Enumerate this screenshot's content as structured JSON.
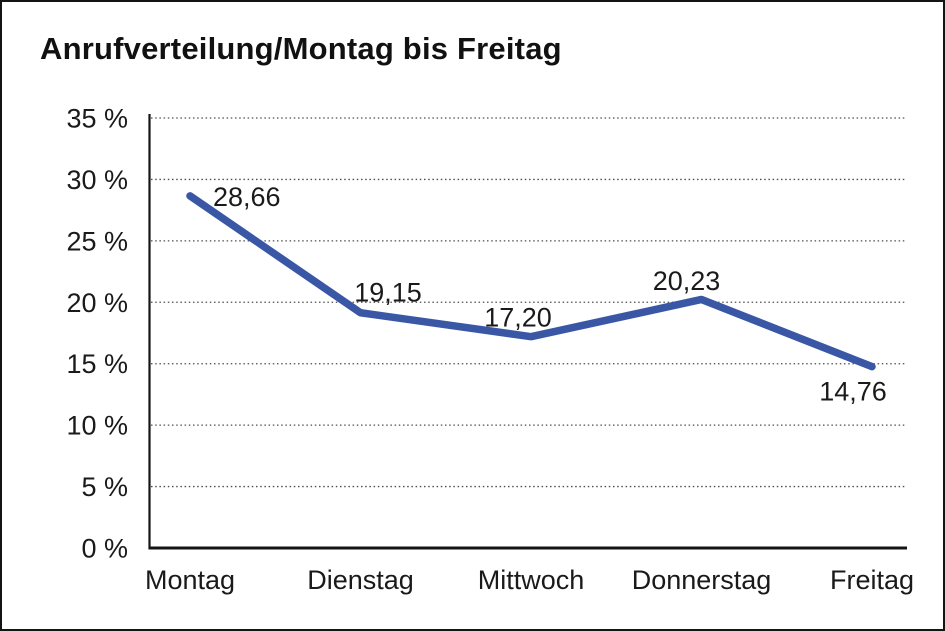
{
  "window": {
    "title": "Anrufverteilung/Montag bis Freitag"
  },
  "chart_data": {
    "type": "line",
    "title": "Anrufverteilung/Montag bis Freitag",
    "categories": [
      "Montag",
      "Dienstag",
      "Mittwoch",
      "Donnerstag",
      "Freitag"
    ],
    "values": [
      28.66,
      19.15,
      17.2,
      20.23,
      14.76
    ],
    "values_display": [
      "28,66",
      "19,15",
      "17,20",
      "20,23",
      "14,76"
    ],
    "xlabel": "",
    "ylabel": "",
    "ylim": [
      0,
      35
    ],
    "yticks": [
      {
        "value": 0,
        "label": "0 %"
      },
      {
        "value": 5,
        "label": "5 %"
      },
      {
        "value": 10,
        "label": "10 %"
      },
      {
        "value": 15,
        "label": "15 %"
      },
      {
        "value": 20,
        "label": "20 %"
      },
      {
        "value": 25,
        "label": "25 %"
      },
      {
        "value": 30,
        "label": "30 %"
      },
      {
        "value": 35,
        "label": "35 %"
      }
    ],
    "grid": "horizontal-dotted",
    "legend": "none",
    "line_color": "#3A57A6",
    "text_color": "#1a1a1a",
    "background": "#ffffff"
  }
}
